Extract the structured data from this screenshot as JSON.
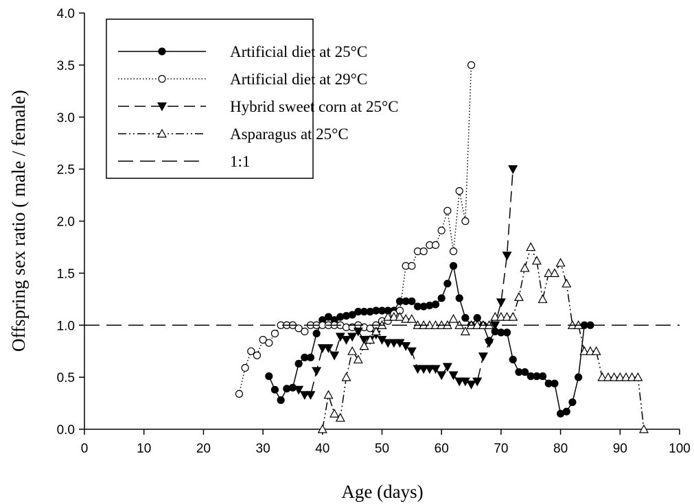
{
  "chart_data": {
    "type": "line",
    "xlabel": "Age (days)",
    "ylabel": "Offspring sex ratio ( male / female)",
    "xlim": [
      0,
      100
    ],
    "xticks": [
      0,
      10,
      20,
      30,
      40,
      50,
      60,
      70,
      80,
      90,
      100
    ],
    "ylim": [
      0,
      4
    ],
    "yticks": [
      {
        "value": 0,
        "label": "0.0"
      },
      {
        "value": 0.5,
        "label": "0.5"
      },
      {
        "value": 1,
        "label": "1.0"
      },
      {
        "value": 1.5,
        "label": "1.5"
      },
      {
        "value": 2,
        "label": "2.0"
      },
      {
        "value": 2.5,
        "label": "2.5"
      },
      {
        "value": 3,
        "label": "3.0"
      },
      {
        "value": 3.5,
        "label": "3.5"
      },
      {
        "value": 4,
        "label": "4.0"
      }
    ],
    "legend": "top-left",
    "series": [
      {
        "name": "Artificial diet at 25°C",
        "color": "#000000",
        "line": "solid",
        "marker": "filled-circle",
        "x": [
          31,
          32,
          33,
          34,
          35,
          36,
          37,
          38,
          39,
          40,
          41,
          42,
          43,
          44,
          45,
          46,
          47,
          48,
          49,
          50,
          51,
          52,
          53,
          54,
          55,
          56,
          57,
          58,
          59,
          60,
          61,
          62,
          63,
          64,
          65,
          66,
          67,
          68,
          69,
          70,
          71,
          72,
          73,
          74,
          75,
          76,
          77,
          78,
          79,
          80,
          81,
          82,
          83,
          84,
          85
        ],
        "values": [
          0.51,
          0.38,
          0.28,
          0.39,
          0.4,
          0.63,
          0.69,
          0.69,
          0.92,
          1.05,
          1.08,
          1.05,
          1.08,
          1.09,
          1.1,
          1.13,
          1.13,
          1.13,
          1.14,
          1.14,
          1.14,
          1.14,
          1.23,
          1.23,
          1.23,
          1.18,
          1.18,
          1.19,
          1.2,
          1.26,
          1.4,
          1.57,
          1.26,
          1.07,
          1.0,
          1.07,
          1.0,
          0.85,
          0.94,
          0.93,
          0.93,
          0.67,
          0.55,
          0.55,
          0.51,
          0.51,
          0.51,
          0.44,
          0.44,
          0.15,
          0.17,
          0.26,
          0.5,
          1.0,
          1.0
        ]
      },
      {
        "name": "Artificial diet at 29°C",
        "color": "#000000",
        "line": "dotted",
        "marker": "open-circle",
        "x": [
          26,
          27,
          28,
          29,
          30,
          31,
          32,
          33,
          34,
          35,
          36,
          37,
          38,
          39,
          40,
          41,
          42,
          43,
          44,
          45,
          46,
          47,
          48,
          49,
          50,
          51,
          52,
          53,
          54,
          55,
          56,
          57,
          58,
          59,
          60,
          61,
          62,
          63,
          64,
          65
        ],
        "values": [
          0.34,
          0.59,
          0.75,
          0.71,
          0.86,
          0.83,
          0.92,
          1.0,
          1.0,
          1.0,
          0.97,
          0.94,
          1.0,
          1.0,
          1.0,
          1.0,
          1.0,
          1.0,
          0.98,
          0.98,
          1.0,
          0.98,
          0.97,
          1.0,
          1.04,
          1.04,
          1.11,
          1.14,
          1.57,
          1.57,
          1.71,
          1.71,
          1.77,
          1.77,
          1.91,
          2.1,
          1.71,
          2.29,
          2.0,
          3.5
        ]
      },
      {
        "name": "Hybrid sweet corn at 25°C",
        "color": "#000000",
        "line": "dashed",
        "marker": "filled-triangle-down",
        "x": [
          36,
          37,
          38,
          39,
          40,
          41,
          42,
          43,
          44,
          45,
          46,
          47,
          48,
          49,
          50,
          51,
          52,
          53,
          54,
          55,
          56,
          57,
          58,
          59,
          60,
          61,
          62,
          63,
          64,
          65,
          66,
          67,
          68,
          69,
          70,
          71,
          72
        ],
        "values": [
          0.38,
          0.33,
          0.33,
          0.56,
          0.78,
          0.78,
          0.71,
          0.89,
          0.86,
          0.89,
          0.94,
          0.86,
          0.86,
          0.91,
          0.86,
          0.83,
          0.83,
          0.83,
          0.8,
          0.75,
          0.58,
          0.58,
          0.58,
          0.58,
          0.52,
          0.6,
          0.52,
          0.46,
          0.46,
          0.43,
          0.46,
          0.7,
          0.83,
          1.0,
          1.22,
          1.67,
          2.5
        ]
      },
      {
        "name": "Asparagus at 25°C",
        "color": "#000000",
        "line": "dash-dot-dot",
        "marker": "open-triangle-up",
        "x": [
          40,
          41,
          42,
          43,
          44,
          45,
          46,
          47,
          48,
          49,
          50,
          51,
          52,
          53,
          54,
          55,
          56,
          57,
          58,
          59,
          60,
          61,
          62,
          63,
          64,
          65,
          66,
          67,
          68,
          69,
          70,
          71,
          72,
          73,
          74,
          75,
          76,
          77,
          78,
          79,
          80,
          81,
          82,
          83,
          84,
          85,
          86,
          87,
          88,
          89,
          90,
          91,
          92,
          93,
          94
        ],
        "values": [
          0.0,
          0.33,
          0.15,
          0.11,
          0.5,
          0.75,
          0.67,
          0.8,
          0.86,
          0.94,
          1.0,
          1.08,
          1.08,
          1.08,
          1.06,
          1.06,
          1.0,
          1.0,
          1.0,
          1.0,
          1.0,
          1.0,
          1.06,
          1.0,
          0.94,
          1.0,
          1.0,
          1.0,
          1.0,
          1.08,
          1.08,
          1.08,
          1.08,
          1.27,
          1.55,
          1.75,
          1.62,
          1.25,
          1.5,
          1.5,
          1.6,
          1.4,
          1.0,
          1.0,
          0.75,
          0.75,
          0.75,
          0.5,
          0.5,
          0.5,
          0.5,
          0.5,
          0.5,
          0.5,
          0.0
        ]
      },
      {
        "name": "1:1",
        "color": "#000000",
        "line": "long-dash",
        "marker": "none",
        "x": [
          0,
          100
        ],
        "values": [
          1,
          1
        ]
      }
    ]
  }
}
